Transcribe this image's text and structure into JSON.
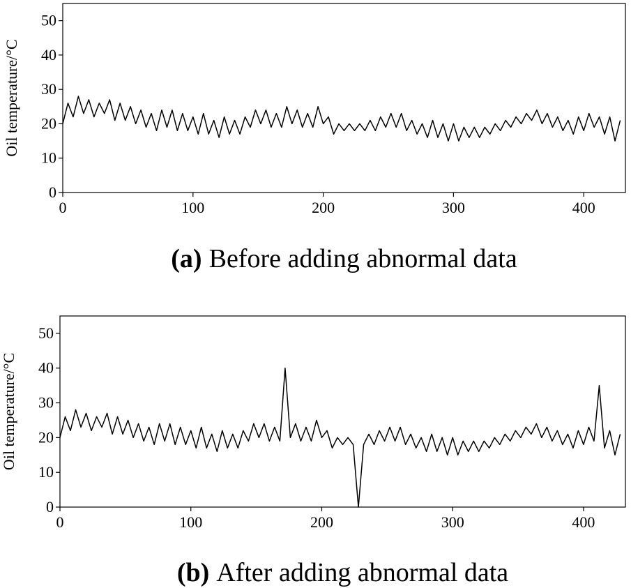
{
  "chart_data": [
    {
      "type": "line",
      "caption_label": "(a)",
      "caption": "Before adding abnormal data",
      "y_label": "Oil temperature/°C",
      "color": "#000000",
      "x": [
        0,
        4,
        8,
        12,
        16,
        20,
        24,
        28,
        32,
        36,
        40,
        44,
        48,
        52,
        56,
        60,
        64,
        68,
        72,
        76,
        80,
        84,
        88,
        92,
        96,
        100,
        104,
        108,
        112,
        116,
        120,
        124,
        128,
        132,
        136,
        140,
        144,
        148,
        152,
        156,
        160,
        164,
        168,
        172,
        176,
        180,
        184,
        188,
        192,
        196,
        200,
        204,
        208,
        212,
        216,
        220,
        224,
        228,
        232,
        236,
        240,
        244,
        248,
        252,
        256,
        260,
        264,
        268,
        272,
        276,
        280,
        284,
        288,
        292,
        296,
        300,
        304,
        308,
        312,
        316,
        320,
        324,
        328,
        332,
        336,
        340,
        344,
        348,
        352,
        356,
        360,
        364,
        368,
        372,
        376,
        380,
        384,
        388,
        392,
        396,
        400,
        404,
        408,
        412,
        416,
        420,
        424,
        428
      ],
      "values": [
        20,
        26,
        22,
        28,
        23,
        27,
        22,
        26,
        23,
        27,
        21,
        26,
        21,
        25,
        20,
        24,
        19,
        23,
        18,
        24,
        19,
        24,
        18,
        23,
        18,
        22,
        17,
        23,
        17,
        21,
        16,
        22,
        17,
        21,
        17,
        22,
        19,
        24,
        20,
        24,
        19,
        23,
        19,
        25,
        20,
        24,
        19,
        23,
        19,
        25,
        20,
        22,
        17,
        20,
        18,
        20,
        18,
        20,
        18,
        21,
        18,
        22,
        19,
        23,
        19,
        23,
        18,
        21,
        17,
        20,
        16,
        21,
        16,
        20,
        15,
        20,
        15,
        19,
        16,
        19,
        16,
        19,
        17,
        20,
        18,
        21,
        19,
        22,
        20,
        23,
        21,
        24,
        20,
        23,
        19,
        22,
        18,
        21,
        17,
        22,
        18,
        23,
        19,
        22,
        17,
        22,
        15,
        21
      ],
      "xlim": [
        0,
        432
      ],
      "ylim": [
        0,
        55
      ],
      "xticks": [
        0,
        100,
        200,
        300,
        400
      ],
      "yticks": [
        0,
        10,
        20,
        30,
        40,
        50
      ]
    },
    {
      "type": "line",
      "caption_label": "(b)",
      "caption": "After adding abnormal data",
      "y_label": "Oil temperature/°C",
      "color": "#000000",
      "x": [
        0,
        4,
        8,
        12,
        16,
        20,
        24,
        28,
        32,
        36,
        40,
        44,
        48,
        52,
        56,
        60,
        64,
        68,
        72,
        76,
        80,
        84,
        88,
        92,
        96,
        100,
        104,
        108,
        112,
        116,
        120,
        124,
        128,
        132,
        136,
        140,
        144,
        148,
        152,
        156,
        160,
        164,
        168,
        172,
        176,
        180,
        184,
        188,
        192,
        196,
        200,
        204,
        208,
        212,
        216,
        220,
        224,
        228,
        232,
        236,
        240,
        244,
        248,
        252,
        256,
        260,
        264,
        268,
        272,
        276,
        280,
        284,
        288,
        292,
        296,
        300,
        304,
        308,
        312,
        316,
        320,
        324,
        328,
        332,
        336,
        340,
        344,
        348,
        352,
        356,
        360,
        364,
        368,
        372,
        376,
        380,
        384,
        388,
        392,
        396,
        400,
        404,
        408,
        412,
        416,
        420,
        424,
        428
      ],
      "values": [
        20,
        26,
        22,
        28,
        23,
        27,
        22,
        26,
        23,
        27,
        21,
        26,
        21,
        25,
        20,
        24,
        19,
        23,
        18,
        24,
        19,
        24,
        18,
        23,
        18,
        22,
        17,
        23,
        17,
        21,
        16,
        22,
        17,
        21,
        17,
        22,
        19,
        24,
        20,
        24,
        19,
        23,
        19,
        40,
        20,
        24,
        19,
        23,
        19,
        25,
        20,
        22,
        17,
        20,
        18,
        20,
        18,
        0,
        18,
        21,
        18,
        22,
        19,
        23,
        19,
        23,
        18,
        21,
        17,
        20,
        16,
        21,
        16,
        20,
        15,
        20,
        15,
        19,
        16,
        19,
        16,
        19,
        17,
        20,
        18,
        21,
        19,
        22,
        20,
        23,
        21,
        24,
        20,
        23,
        19,
        22,
        18,
        21,
        17,
        22,
        18,
        23,
        19,
        35,
        17,
        22,
        15,
        21
      ],
      "xlim": [
        0,
        432
      ],
      "ylim": [
        0,
        55
      ],
      "xticks": [
        0,
        100,
        200,
        300,
        400
      ],
      "yticks": [
        0,
        10,
        20,
        30,
        40,
        50
      ]
    }
  ]
}
